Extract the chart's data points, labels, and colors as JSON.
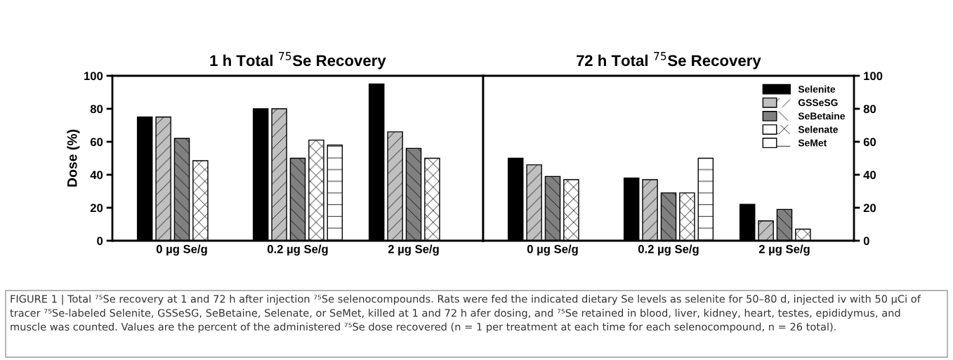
{
  "chart_data": [
    {
      "type": "bar",
      "title": "1 h Total $^{75}$Se Recovery",
      "ylabel": "Dose (%)",
      "categories": [
        "0 µg Se/g",
        "0.2 µg Se/g",
        "2 µg Se/g"
      ],
      "series": [
        {
          "color": "#000000",
          "values": [
            75,
            80,
            95
          ]
        },
        {
          "color": "#c0c0c0",
          "values": [
            75,
            80,
            66
          ]
        },
        {
          "color": "#808080",
          "values": [
            62,
            50,
            56
          ]
        },
        {
          "color": "#ffffff",
          "values": [
            48.5,
            61,
            50
          ]
        },
        {
          "color": "#ffffff",
          "values": [
            null,
            58,
            null
          ]
        }
      ],
      "ylim": [
        0,
        100
      ],
      "yticks": [
        0,
        20,
        40,
        60,
        80,
        100
      ],
      "legend": false,
      "grid": false,
      "annotations": [
        "FIGURE 1 | Total ⁷⁵Se recovery at 1 and 72 h after injection ⁷⁵Se selenocompounds. Rats were fed the indicated dietary Se levels as selenite for 50–80 d, injected iv with 50 μCi of tracer ⁷⁵Se-labeled Selenite, GSSeSG, SeBetaine, Selenate, or SeMet, killed at 1 and 72 h afer dosing, and ⁷⁵Se retained in blood, liver, kidney, heart, testes, epididymus, and muscle was counted. Values are the percent of the administered ⁷⁵Se dose recovered (n = 1 per treatment at each time for each selenocompound, n = 26 total)."
      ]
    },
    {
      "type": "bar",
      "title": "72 h Total $^{75}$Se Recovery",
      "categories": [
        "0 µg Se/g",
        "0.2 µg Se/g",
        "2 µg Se/g"
      ],
      "series": [
        {
          "name": "Selenite",
          "color": "#000000",
          "values": [
            50,
            38,
            22
          ]
        },
        {
          "name": "GSSeSG",
          "color": "#c0c0c0",
          "values": [
            46,
            37,
            12
          ]
        },
        {
          "name": "SeBetaine",
          "color": "#808080",
          "values": [
            39,
            29,
            19
          ]
        },
        {
          "name": "Selenate",
          "color": "#ffffff",
          "values": [
            37,
            29,
            7
          ]
        },
        {
          "name": "SeMet",
          "color": "#ffffff",
          "values": [
            null,
            50,
            null
          ]
        }
      ],
      "ylim": [
        0,
        100
      ],
      "yticks": [
        0,
        20,
        40,
        60,
        80,
        100
      ],
      "legend": "top right",
      "grid": false
    }
  ]
}
